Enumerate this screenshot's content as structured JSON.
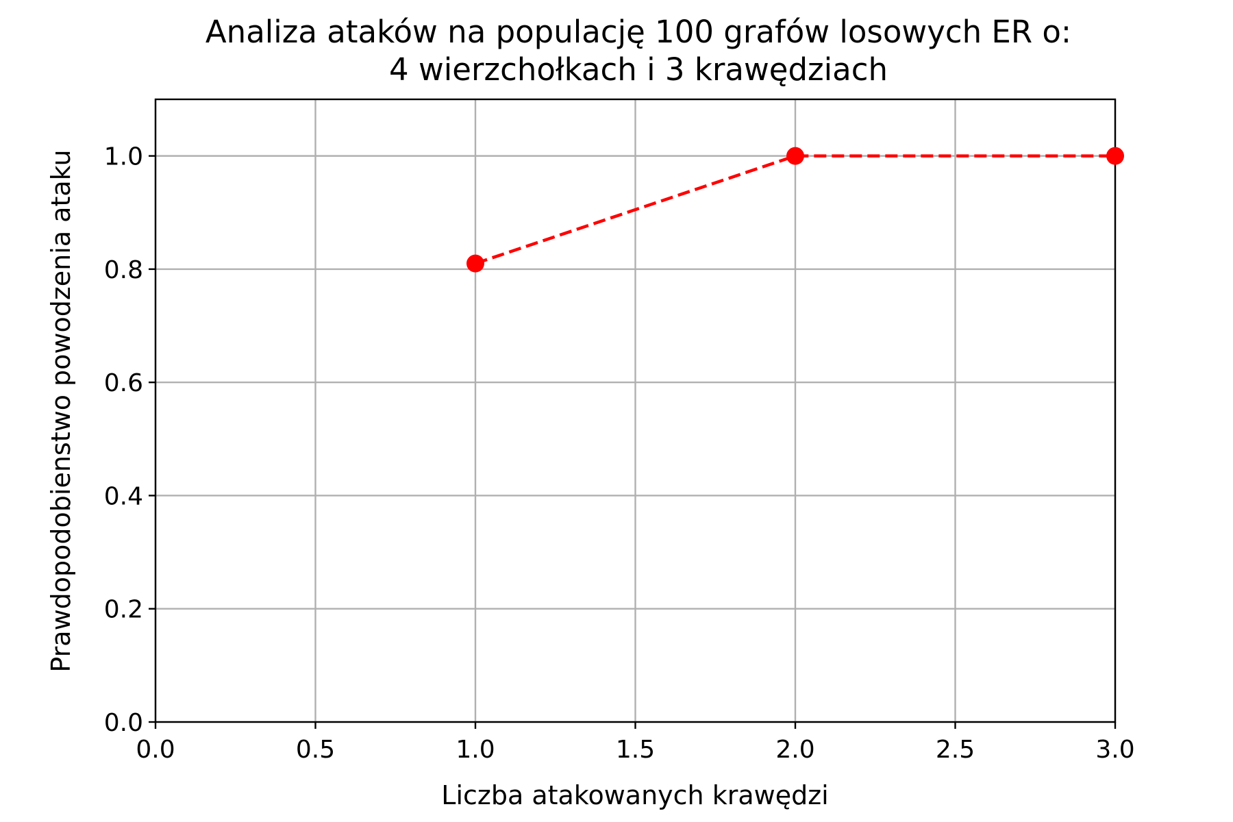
{
  "chart_data": {
    "type": "line",
    "title_lines": [
      "Analiza ataków na populację 100 grafów losowych ER o:",
      "4 wierzchołkach i 3 krawędziach"
    ],
    "xlabel": "Liczba atakowanych krawędzi",
    "ylabel": "Prawdopodobienstwo powodzenia ataku",
    "xlim": [
      0.0,
      3.0
    ],
    "ylim": [
      0.0,
      1.1
    ],
    "x_ticks": [
      0.0,
      0.5,
      1.0,
      1.5,
      2.0,
      2.5,
      3.0
    ],
    "x_tick_labels": [
      "0.0",
      "0.5",
      "1.0",
      "1.5",
      "2.0",
      "2.5",
      "3.0"
    ],
    "y_ticks": [
      0.0,
      0.2,
      0.4,
      0.6,
      0.8,
      1.0
    ],
    "y_tick_labels": [
      "0.0",
      "0.2",
      "0.4",
      "0.6",
      "0.8",
      "1.0"
    ],
    "grid": true,
    "series": [
      {
        "x": [
          1,
          2,
          3
        ],
        "values": [
          0.81,
          1.0,
          1.0
        ],
        "color": "#ff0000",
        "line_style": "dashed",
        "marker": "circle"
      }
    ]
  }
}
